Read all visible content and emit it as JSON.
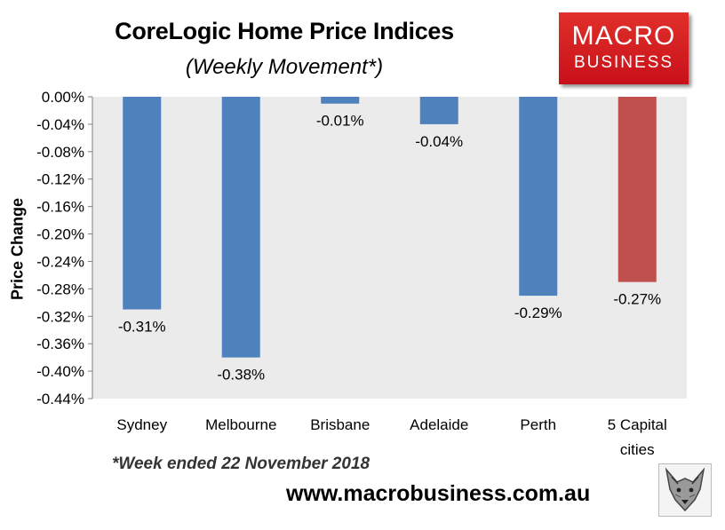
{
  "brand": {
    "logo_line1": "MACRO",
    "logo_line2": "BUSINESS",
    "logo_color": "#d21e24",
    "website": "www.macrobusiness.com.au",
    "mascot_icon": "wolf-icon"
  },
  "footnote": "*Week ended 22 November 2018",
  "chart_data": {
    "type": "bar",
    "title": "CoreLogic Home Price Indices",
    "subtitle": "(Weekly Movement*)",
    "xlabel": "",
    "ylabel": "Price Change",
    "categories": [
      "Sydney",
      "Melbourne",
      "Brisbane",
      "Adelaide",
      "Perth",
      "5 Capital cities"
    ],
    "category_lines": [
      [
        "Sydney"
      ],
      [
        "Melbourne"
      ],
      [
        "Brisbane"
      ],
      [
        "Adelaide"
      ],
      [
        "Perth"
      ],
      [
        "5 Capital",
        "cities"
      ]
    ],
    "values": [
      -0.31,
      -0.38,
      -0.01,
      -0.04,
      -0.29,
      -0.27
    ],
    "data_labels": [
      "-0.31%",
      "-0.38%",
      "-0.01%",
      "-0.04%",
      "-0.29%",
      "-0.27%"
    ],
    "bar_colors": [
      "#4f81bd",
      "#4f81bd",
      "#4f81bd",
      "#4f81bd",
      "#4f81bd",
      "#c0504d"
    ],
    "ylim": [
      -0.44,
      0.0
    ],
    "yticks": [
      0.0,
      -0.04,
      -0.08,
      -0.12,
      -0.16,
      -0.2,
      -0.24,
      -0.28,
      -0.32,
      -0.36,
      -0.4,
      -0.44
    ],
    "ytick_labels": [
      "0.00%",
      "-0.04%",
      "-0.08%",
      "-0.12%",
      "-0.16%",
      "-0.20%",
      "-0.24%",
      "-0.28%",
      "-0.32%",
      "-0.36%",
      "-0.40%",
      "-0.44%"
    ],
    "grid": false,
    "plot_background": "#ebebeb",
    "legend": "none"
  }
}
